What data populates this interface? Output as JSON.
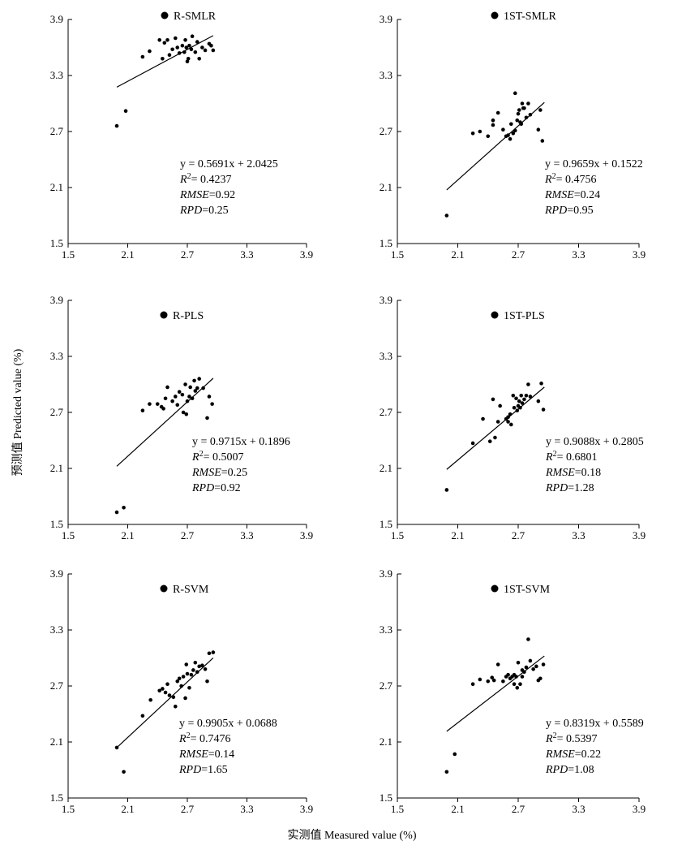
{
  "figure": {
    "xlabel": "实测值 Measured value (%)",
    "ylabel": "预测值 Predicted value (%)"
  },
  "chart_data": [
    {
      "type": "scatter",
      "legend": "R-SMLR",
      "xlim": [
        1.5,
        3.9
      ],
      "ylim": [
        1.5,
        3.9
      ],
      "xticks": [
        "1.5",
        "2.1",
        "2.7",
        "3.3",
        "3.9"
      ],
      "yticks": [
        "1.5",
        "2.1",
        "2.7",
        "3.3",
        "3.9"
      ],
      "points": [
        [
          1.99,
          2.76
        ],
        [
          2.08,
          2.92
        ],
        [
          2.25,
          3.5
        ],
        [
          2.32,
          3.56
        ],
        [
          2.42,
          3.68
        ],
        [
          2.45,
          3.48
        ],
        [
          2.47,
          3.65
        ],
        [
          2.5,
          3.68
        ],
        [
          2.52,
          3.52
        ],
        [
          2.55,
          3.58
        ],
        [
          2.58,
          3.7
        ],
        [
          2.6,
          3.6
        ],
        [
          2.62,
          3.54
        ],
        [
          2.65,
          3.62
        ],
        [
          2.67,
          3.55
        ],
        [
          2.68,
          3.68
        ],
        [
          2.69,
          3.6
        ],
        [
          2.7,
          3.45
        ],
        [
          2.71,
          3.48
        ],
        [
          2.72,
          3.62
        ],
        [
          2.74,
          3.58
        ],
        [
          2.75,
          3.72
        ],
        [
          2.78,
          3.55
        ],
        [
          2.8,
          3.66
        ],
        [
          2.82,
          3.48
        ],
        [
          2.85,
          3.6
        ],
        [
          2.88,
          3.57
        ],
        [
          2.92,
          3.64
        ],
        [
          2.94,
          3.62
        ],
        [
          2.96,
          3.57
        ]
      ],
      "fit": {
        "slope": 0.5691,
        "intercept": 2.0425,
        "xrange": [
          1.99,
          2.96
        ]
      },
      "stats": {
        "equation": "y = 0.5691x + 2.0425",
        "r2_sym": "R",
        "r2_sup": "2",
        "r2_val": "= 0.4237",
        "rmse_sym": "RMSE",
        "rmse_val": "=0.92",
        "rpd_sym": "RPD",
        "rpd_val": "=0.25"
      }
    },
    {
      "type": "scatter",
      "legend": "1ST-SMLR",
      "xlim": [
        1.5,
        3.9
      ],
      "ylim": [
        1.5,
        3.9
      ],
      "xticks": [
        "1.5",
        "2.1",
        "2.7",
        "3.3",
        "3.9"
      ],
      "yticks": [
        "1.5",
        "2.1",
        "2.7",
        "3.3",
        "3.9"
      ],
      "points": [
        [
          1.99,
          1.8
        ],
        [
          2.25,
          2.68
        ],
        [
          2.32,
          2.7
        ],
        [
          2.4,
          2.65
        ],
        [
          2.45,
          2.82
        ],
        [
          2.45,
          2.77
        ],
        [
          2.5,
          2.9
        ],
        [
          2.55,
          2.72
        ],
        [
          2.58,
          2.65
        ],
        [
          2.62,
          2.62
        ],
        [
          2.63,
          2.78
        ],
        [
          2.65,
          2.68
        ],
        [
          2.67,
          2.71
        ],
        [
          2.69,
          2.82
        ],
        [
          2.7,
          2.89
        ],
        [
          2.71,
          2.93
        ],
        [
          2.73,
          2.78
        ],
        [
          2.74,
          3.0
        ],
        [
          2.76,
          2.95
        ],
        [
          2.78,
          2.85
        ],
        [
          2.8,
          3.0
        ],
        [
          2.67,
          3.11
        ],
        [
          2.72,
          2.8
        ],
        [
          2.82,
          2.88
        ],
        [
          2.9,
          2.72
        ],
        [
          2.92,
          2.93
        ],
        [
          2.94,
          2.6
        ],
        [
          2.75,
          2.95
        ],
        [
          2.6,
          2.66
        ]
      ],
      "fit": {
        "slope": 0.9659,
        "intercept": 0.1522,
        "xrange": [
          1.99,
          2.96
        ]
      },
      "stats": {
        "equation": "y = 0.9659x + 0.1522",
        "r2_sym": "R",
        "r2_sup": "2",
        "r2_val": "= 0.4756",
        "rmse_sym": "RMSE",
        "rmse_val": "=0.24",
        "rpd_sym": "RPD",
        "rpd_val": "=0.95"
      }
    },
    {
      "type": "scatter",
      "legend": "R-PLS",
      "xlim": [
        1.5,
        3.9
      ],
      "ylim": [
        1.5,
        3.9
      ],
      "xticks": [
        "1.5",
        "2.1",
        "2.7",
        "3.3",
        "3.9"
      ],
      "yticks": [
        "1.5",
        "2.1",
        "2.7",
        "3.3",
        "3.9"
      ],
      "points": [
        [
          1.99,
          1.63
        ],
        [
          2.06,
          1.68
        ],
        [
          2.25,
          2.72
        ],
        [
          2.32,
          2.79
        ],
        [
          2.4,
          2.79
        ],
        [
          2.44,
          2.76
        ],
        [
          2.46,
          2.74
        ],
        [
          2.48,
          2.85
        ],
        [
          2.5,
          2.97
        ],
        [
          2.55,
          2.82
        ],
        [
          2.58,
          2.87
        ],
        [
          2.6,
          2.78
        ],
        [
          2.62,
          2.92
        ],
        [
          2.65,
          2.89
        ],
        [
          2.66,
          2.7
        ],
        [
          2.68,
          3.0
        ],
        [
          2.69,
          2.68
        ],
        [
          2.7,
          2.82
        ],
        [
          2.72,
          2.87
        ],
        [
          2.73,
          2.97
        ],
        [
          2.75,
          2.85
        ],
        [
          2.77,
          3.04
        ],
        [
          2.78,
          2.93
        ],
        [
          2.8,
          2.96
        ],
        [
          2.82,
          3.06
        ],
        [
          2.86,
          2.96
        ],
        [
          2.9,
          2.64
        ],
        [
          2.92,
          2.87
        ],
        [
          2.95,
          2.79
        ]
      ],
      "fit": {
        "slope": 0.9715,
        "intercept": 0.1896,
        "xrange": [
          1.99,
          2.96
        ]
      },
      "stats": {
        "equation": "y = 0.9715x + 0.1896",
        "r2_sym": "R",
        "r2_sup": "2",
        "r2_val": "= 0.5007",
        "rmse_sym": "RMSE",
        "rmse_val": "=0.25",
        "rpd_sym": "RPD",
        "rpd_val": "=0.92"
      }
    },
    {
      "type": "scatter",
      "legend": "1ST-PLS",
      "xlim": [
        1.5,
        3.9
      ],
      "ylim": [
        1.5,
        3.9
      ],
      "xticks": [
        "1.5",
        "2.1",
        "2.7",
        "3.3",
        "3.9"
      ],
      "yticks": [
        "1.5",
        "2.1",
        "2.7",
        "3.3",
        "3.9"
      ],
      "points": [
        [
          1.99,
          1.87
        ],
        [
          2.25,
          2.37
        ],
        [
          2.35,
          2.63
        ],
        [
          2.42,
          2.39
        ],
        [
          2.45,
          2.84
        ],
        [
          2.47,
          2.43
        ],
        [
          2.5,
          2.6
        ],
        [
          2.52,
          2.77
        ],
        [
          2.58,
          2.63
        ],
        [
          2.6,
          2.6
        ],
        [
          2.62,
          2.68
        ],
        [
          2.63,
          2.57
        ],
        [
          2.65,
          2.88
        ],
        [
          2.66,
          2.75
        ],
        [
          2.68,
          2.85
        ],
        [
          2.69,
          2.72
        ],
        [
          2.7,
          2.77
        ],
        [
          2.71,
          2.82
        ],
        [
          2.73,
          2.88
        ],
        [
          2.74,
          2.8
        ],
        [
          2.76,
          2.84
        ],
        [
          2.78,
          2.88
        ],
        [
          2.8,
          3.0
        ],
        [
          2.82,
          2.87
        ],
        [
          2.9,
          2.82
        ],
        [
          2.93,
          3.01
        ],
        [
          2.95,
          2.73
        ],
        [
          2.6,
          2.65
        ],
        [
          2.72,
          2.75
        ]
      ],
      "fit": {
        "slope": 0.9088,
        "intercept": 0.2805,
        "xrange": [
          1.99,
          2.96
        ]
      },
      "stats": {
        "equation": "y = 0.9088x + 0.2805",
        "r2_sym": "R",
        "r2_sup": "2",
        "r2_val": "= 0.6801",
        "rmse_sym": "RMSE",
        "rmse_val": "=0.18",
        "rpd_sym": "RPD",
        "rpd_val": "=1.28"
      }
    },
    {
      "type": "scatter",
      "legend": "R-SVM",
      "xlim": [
        1.5,
        3.9
      ],
      "ylim": [
        1.5,
        3.9
      ],
      "xticks": [
        "1.5",
        "2.1",
        "2.7",
        "3.3",
        "3.9"
      ],
      "yticks": [
        "1.5",
        "2.1",
        "2.7",
        "3.3",
        "3.9"
      ],
      "points": [
        [
          1.99,
          2.04
        ],
        [
          2.06,
          1.78
        ],
        [
          2.25,
          2.38
        ],
        [
          2.33,
          2.55
        ],
        [
          2.42,
          2.65
        ],
        [
          2.45,
          2.67
        ],
        [
          2.48,
          2.63
        ],
        [
          2.5,
          2.72
        ],
        [
          2.52,
          2.6
        ],
        [
          2.56,
          2.58
        ],
        [
          2.58,
          2.48
        ],
        [
          2.6,
          2.75
        ],
        [
          2.62,
          2.78
        ],
        [
          2.64,
          2.7
        ],
        [
          2.66,
          2.8
        ],
        [
          2.68,
          2.57
        ],
        [
          2.69,
          2.93
        ],
        [
          2.7,
          2.83
        ],
        [
          2.72,
          2.68
        ],
        [
          2.74,
          2.82
        ],
        [
          2.76,
          2.87
        ],
        [
          2.78,
          2.95
        ],
        [
          2.8,
          2.85
        ],
        [
          2.82,
          2.91
        ],
        [
          2.85,
          2.92
        ],
        [
          2.88,
          2.88
        ],
        [
          2.9,
          2.75
        ],
        [
          2.92,
          3.05
        ],
        [
          2.96,
          3.06
        ]
      ],
      "fit": {
        "slope": 0.9905,
        "intercept": 0.0688,
        "xrange": [
          1.99,
          2.96
        ]
      },
      "stats": {
        "equation": "y = 0.9905x + 0.0688",
        "r2_sym": "R",
        "r2_sup": "2",
        "r2_val": "= 0.7476",
        "rmse_sym": "RMSE",
        "rmse_val": "=0.14",
        "rpd_sym": "RPD",
        "rpd_val": "=1.65"
      }
    },
    {
      "type": "scatter",
      "legend": "1ST-SVM",
      "xlim": [
        1.5,
        3.9
      ],
      "ylim": [
        1.5,
        3.9
      ],
      "xticks": [
        "1.5",
        "2.1",
        "2.7",
        "3.3",
        "3.9"
      ],
      "yticks": [
        "1.5",
        "2.1",
        "2.7",
        "3.3",
        "3.9"
      ],
      "points": [
        [
          1.99,
          1.78
        ],
        [
          2.07,
          1.97
        ],
        [
          2.25,
          2.72
        ],
        [
          2.32,
          2.77
        ],
        [
          2.4,
          2.75
        ],
        [
          2.44,
          2.79
        ],
        [
          2.46,
          2.76
        ],
        [
          2.5,
          2.93
        ],
        [
          2.55,
          2.75
        ],
        [
          2.58,
          2.8
        ],
        [
          2.6,
          2.82
        ],
        [
          2.62,
          2.78
        ],
        [
          2.64,
          2.8
        ],
        [
          2.66,
          2.72
        ],
        [
          2.68,
          2.8
        ],
        [
          2.69,
          2.68
        ],
        [
          2.7,
          2.95
        ],
        [
          2.72,
          2.72
        ],
        [
          2.74,
          2.8
        ],
        [
          2.76,
          2.85
        ],
        [
          2.78,
          2.9
        ],
        [
          2.8,
          3.2
        ],
        [
          2.82,
          2.97
        ],
        [
          2.85,
          2.88
        ],
        [
          2.88,
          2.91
        ],
        [
          2.9,
          2.76
        ],
        [
          2.92,
          2.78
        ],
        [
          2.95,
          2.93
        ],
        [
          2.66,
          2.82
        ],
        [
          2.74,
          2.87
        ]
      ],
      "fit": {
        "slope": 0.8319,
        "intercept": 0.5589,
        "xrange": [
          1.99,
          2.96
        ]
      },
      "stats": {
        "equation": "y = 0.8319x + 0.5589",
        "r2_sym": "R",
        "r2_sup": "2",
        "r2_val": "= 0.5397",
        "rmse_sym": "RMSE",
        "rmse_val": "=0.22",
        "rpd_sym": "RPD",
        "rpd_val": "=1.08"
      }
    }
  ]
}
